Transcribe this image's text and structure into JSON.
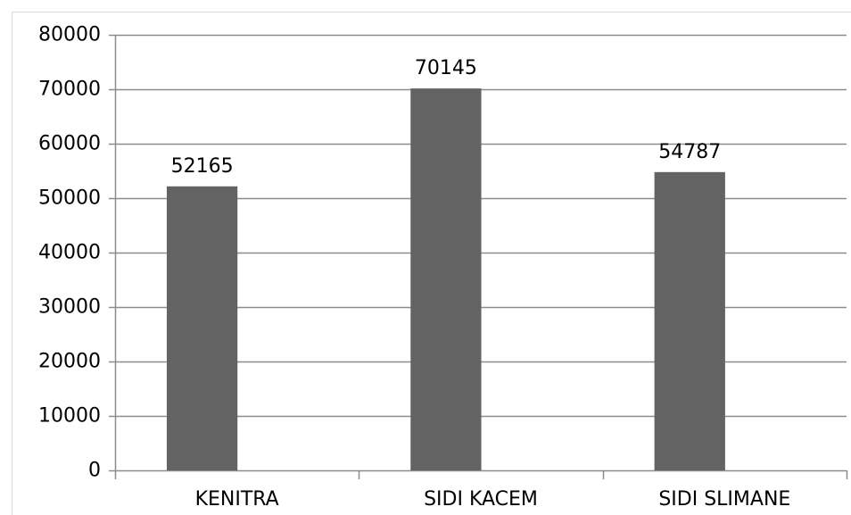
{
  "chart_data": {
    "type": "bar",
    "categories": [
      "KENITRA",
      "SIDI KACEM",
      "SIDI SLIMANE"
    ],
    "values": [
      52165,
      70145,
      54787
    ],
    "color": "#636363",
    "ylim": [
      0,
      80000
    ],
    "yticks": [
      0,
      10000,
      20000,
      30000,
      40000,
      50000,
      60000,
      70000,
      80000
    ],
    "grid": true
  }
}
